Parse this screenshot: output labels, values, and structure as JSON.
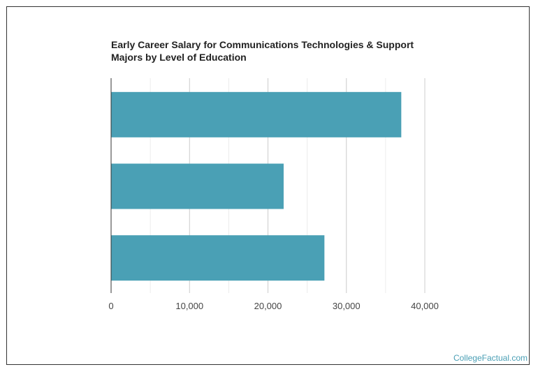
{
  "chart_data": {
    "type": "bar",
    "orientation": "horizontal",
    "title_lines": [
      "Early Career Salary for Communications Technologies & Support",
      "Majors by Level of Education"
    ],
    "categories": [
      "",
      "",
      ""
    ],
    "values": [
      37000,
      22000,
      27200
    ],
    "xlabel": "",
    "ylabel": "",
    "xlim": [
      0,
      40000
    ],
    "ticks": [
      0,
      10000,
      20000,
      30000,
      40000
    ],
    "tick_labels": [
      "0",
      "10,000",
      "20,000",
      "30,000",
      "40,000"
    ],
    "grid": true,
    "bar_color": "#4aa0b5"
  },
  "credit": "CollegeFactual.com"
}
